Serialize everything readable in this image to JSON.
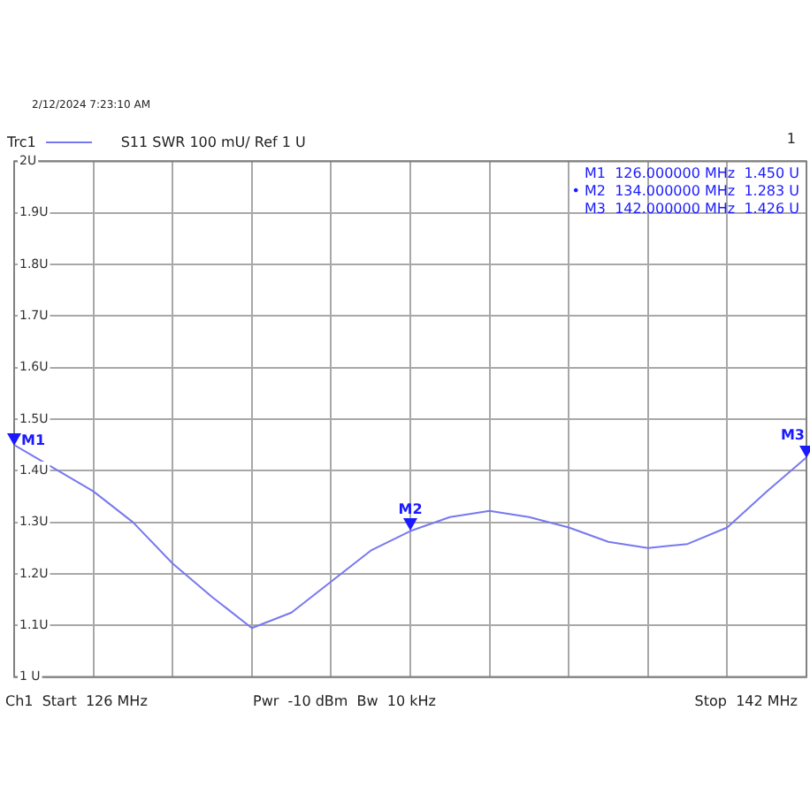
{
  "chart_data": {
    "type": "line",
    "title": "S11  SWR  100 mU/ Ref 1 U",
    "subtitle": "2/12/2024 7:23:10 AM",
    "annotations": [
      {
        "text": "M1",
        "y": 1.45
      },
      {
        "text": "M2",
        "y": 1.283
      },
      {
        "text": "M3",
        "y": 1.426
      },
      "M1  126.000000 MHz  1.450 U",
      "• M2  134.000000 MHz  1.283 U",
      "M3  142.000000 MHz  1.426 U",
      "1",
      "Ch1  Start  126 MHz",
      "Pwr  -10 dBm  Bw  10 kHz",
      "Stop  142 MHz"
    ],
    "categories": [
      null,
      null,
      null,
      null,
      null,
      null,
      null,
      null,
      null,
      null,
      null,
      null,
      null,
      null,
      null,
      null,
      null,
      null,
      null,
      null,
      null
    ],
    "series": [
      {
        "name": "Trc1",
        "color": "#7878f0",
        "values": [
          1.45,
          1.405,
          1.36,
          1.3,
          1.22,
          1.155,
          1.095,
          1.125,
          1.185,
          1.245,
          1.283,
          1.31,
          1.322,
          1.31,
          1.29,
          1.262,
          1.25,
          1.258,
          1.29,
          1.36,
          1.426
        ]
      }
    ],
    "ylim": [
      1,
      2
    ],
    "yticks": [
      {
        "value": 1,
        "label": "1 U"
      },
      {
        "value": 1.1,
        "label": "1.1U"
      },
      {
        "value": 1.2,
        "label": "1.2U"
      },
      {
        "value": 1.3,
        "label": "1.3U"
      },
      {
        "value": 1.4,
        "label": "1.4U"
      },
      {
        "value": 1.5,
        "label": "1.5U"
      },
      {
        "value": 1.6,
        "label": "1.6U"
      },
      {
        "value": 1.7,
        "label": "1.7U"
      },
      {
        "value": 1.8,
        "label": "1.8U"
      },
      {
        "value": 1.9,
        "label": "1.9U"
      },
      {
        "value": 2,
        "label": "2U"
      }
    ],
    "tick_labels": "y",
    "grid": true,
    "legend": "top left",
    "marker": "none",
    "line_style": "solid"
  }
}
